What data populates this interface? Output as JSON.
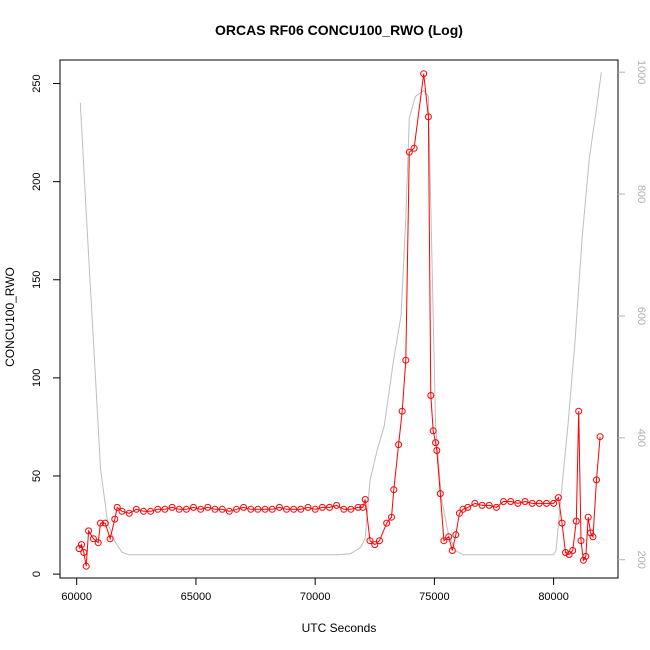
{
  "chart_data": {
    "type": "line",
    "title": "ORCAS RF06 CONCU100_RWO (Log)",
    "xlabel": "UTC Seconds",
    "ylabel": "CONCU100_RWO",
    "xlim": [
      59300,
      82700
    ],
    "ylim": [
      -2,
      262
    ],
    "xticks": [
      60000,
      65000,
      70000,
      75000,
      80000
    ],
    "yticks": [
      0,
      50,
      100,
      150,
      200,
      250
    ],
    "grid": false,
    "legend": "none",
    "colors": {
      "primary": "#ff0000",
      "secondary": "#bebebe"
    },
    "secondary_axis": {
      "ylim": [
        1020,
        170
      ],
      "ticks": [
        200,
        400,
        600,
        800,
        1000
      ]
    },
    "series": [
      {
        "x": [
          60100,
          60200,
          60300,
          60400,
          60500,
          60700,
          60900,
          61000,
          61200,
          61400,
          61600,
          61700,
          61900,
          62200,
          62500,
          62800,
          63100,
          63400,
          63700,
          64000,
          64300,
          64600,
          64900,
          65200,
          65500,
          65800,
          66100,
          66400,
          66700,
          67000,
          67300,
          67600,
          67900,
          68200,
          68500,
          68800,
          69100,
          69400,
          69700,
          70000,
          70300,
          70600,
          70900,
          71200,
          71500,
          71800,
          72000,
          72100,
          72300,
          72500,
          72700,
          73000,
          73200,
          73300,
          73500,
          73650,
          73800,
          73950,
          74150,
          74550,
          74750,
          74850,
          74950,
          75050,
          75100,
          75250,
          75400,
          75600,
          75750,
          75900,
          76050,
          76200,
          76400,
          76700,
          77000,
          77300,
          77600,
          77900,
          78200,
          78500,
          78800,
          79100,
          79400,
          79700,
          80000,
          80200,
          80350,
          80500,
          80650,
          80800,
          80950,
          81050,
          81150,
          81250,
          81350,
          81450,
          81550,
          81650,
          81800,
          81950
        ],
        "values": [
          13,
          15,
          11,
          4,
          22,
          18,
          16,
          26,
          26,
          18,
          28,
          34,
          32,
          31,
          33,
          32,
          32,
          33,
          33,
          34,
          33,
          33,
          34,
          33,
          34,
          33,
          33,
          32,
          33,
          34,
          33,
          33,
          33,
          33,
          34,
          33,
          33,
          33,
          34,
          33,
          34,
          34,
          35,
          33,
          33,
          34,
          34,
          38,
          17,
          15,
          17,
          26,
          29,
          43,
          66,
          83,
          109,
          215,
          217,
          255,
          233,
          91,
          73,
          67,
          63,
          41,
          17,
          19,
          12,
          20,
          31,
          33,
          34,
          36,
          35,
          35,
          34,
          37,
          37,
          36,
          37,
          36,
          36,
          36,
          36,
          39,
          26,
          11,
          10,
          12,
          27,
          83,
          17,
          7,
          9,
          29,
          21,
          19,
          48,
          70
        ]
      },
      {
        "x": [
          60150,
          60400,
          60700,
          61000,
          61300,
          61600,
          61900,
          62200,
          63000,
          65000,
          67000,
          69000,
          71000,
          71500,
          71900,
          72100,
          72300,
          72600,
          72900,
          73300,
          73600,
          73800,
          73950,
          74200,
          74550,
          74750,
          74850,
          75050,
          75300,
          75600,
          75900,
          76200,
          76500,
          77000,
          79000,
          80000,
          80100,
          80300,
          80600,
          80900,
          81200,
          81500,
          81800,
          82000
        ],
        "values": [
          950,
          770,
          560,
          350,
          260,
          230,
          212,
          208,
          208,
          208,
          208,
          208,
          208,
          210,
          220,
          235,
          330,
          380,
          420,
          530,
          600,
          760,
          925,
          960,
          970,
          960,
          780,
          420,
          300,
          240,
          215,
          208,
          208,
          208,
          208,
          208,
          215,
          300,
          420,
          560,
          730,
          860,
          940,
          1000
        ]
      }
    ]
  }
}
